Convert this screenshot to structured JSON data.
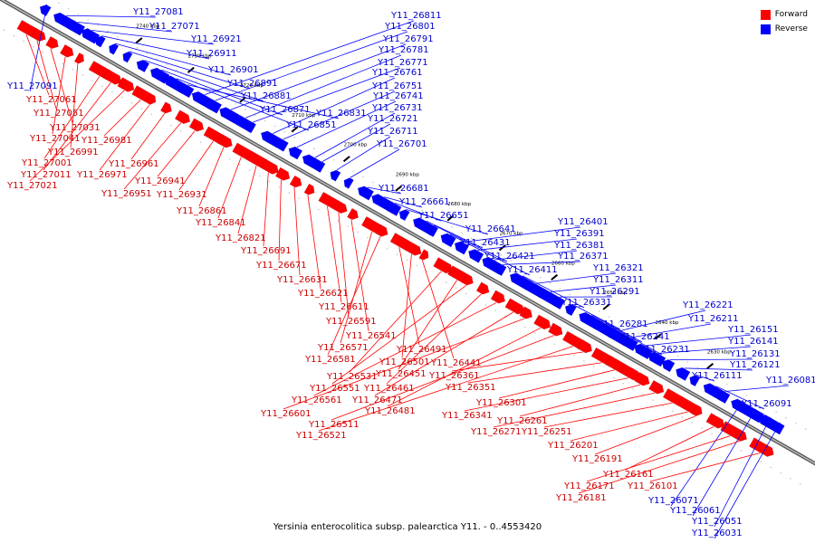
{
  "legend": [
    {
      "label": "Forward",
      "color": "#ff0000"
    },
    {
      "label": "Reverse",
      "color": "#0000ff"
    }
  ],
  "caption": "Yersinia enterocolitica subsp. palearctica Y11. - 0..4553420",
  "colors": {
    "forward": "#ff0000",
    "reverse": "#0000ff",
    "label_forward": "#cc0000",
    "label_reverse": "#0000cc",
    "axis": "#999999"
  },
  "ticks": [
    "2740 kbp",
    "2730 kbp",
    "2720 kbp",
    "2710 kbp",
    "2700 kbp",
    "2690 kbp",
    "2680 kbp",
    "2670 kbp",
    "2660 kbp",
    "2650 kbp",
    "2640 kbp",
    "2630 kbp"
  ],
  "reverse_genes": [
    "Y11_27091",
    "Y11_27081",
    "Y11_27071",
    "Y11_26921",
    "Y11_26911",
    "Y11_26901",
    "Y11_26891",
    "Y11_26881",
    "Y11_26871",
    "Y11_26851",
    "Y11_26831",
    "Y11_26811",
    "Y11_26801",
    "Y11_26791",
    "Y11_26781",
    "Y11_26771",
    "Y11_26761",
    "Y11_26751",
    "Y11_26741",
    "Y11_26731",
    "Y11_26721",
    "Y11_26711",
    "Y11_26701",
    "Y11_26681",
    "Y11_26661",
    "Y11_26651",
    "Y11_26641",
    "Y11_26431",
    "Y11_26421",
    "Y11_26411",
    "Y11_26401",
    "Y11_26391",
    "Y11_26381",
    "Y11_26371",
    "Y11_26331",
    "Y11_26321",
    "Y11_26311",
    "Y11_26291",
    "Y11_26281",
    "Y11_26241",
    "Y11_26231",
    "Y11_26221",
    "Y11_26211",
    "Y11_26151",
    "Y11_26141",
    "Y11_26131",
    "Y11_26121",
    "Y11_26111",
    "Y11_26091",
    "Y11_26081",
    "Y11_26071",
    "Y11_26061",
    "Y11_26051",
    "Y11_26031"
  ],
  "forward_genes": [
    "Y11_27061",
    "Y11_27051",
    "Y11_27031",
    "Y11_27041",
    "Y11_26991",
    "Y11_27001",
    "Y11_27011",
    "Y11_27021",
    "Y11_26981",
    "Y11_26971",
    "Y11_26961",
    "Y11_26951",
    "Y11_26941",
    "Y11_26931",
    "Y11_26861",
    "Y11_26841",
    "Y11_26821",
    "Y11_26691",
    "Y11_26671",
    "Y11_26631",
    "Y11_26621",
    "Y11_26611",
    "Y11_26591",
    "Y11_26541",
    "Y11_26571",
    "Y11_26581",
    "Y11_26491",
    "Y11_26501",
    "Y11_26441",
    "Y11_26531",
    "Y11_26451",
    "Y11_26551",
    "Y11_26461",
    "Y11_26561",
    "Y11_26471",
    "Y11_26601",
    "Y11_26481",
    "Y11_26511",
    "Y11_26521",
    "Y11_26361",
    "Y11_26351",
    "Y11_26301",
    "Y11_26341",
    "Y11_26261",
    "Y11_26271",
    "Y11_26251",
    "Y11_26201",
    "Y11_26191",
    "Y11_26161",
    "Y11_26171",
    "Y11_26181",
    "Y11_26101"
  ]
}
